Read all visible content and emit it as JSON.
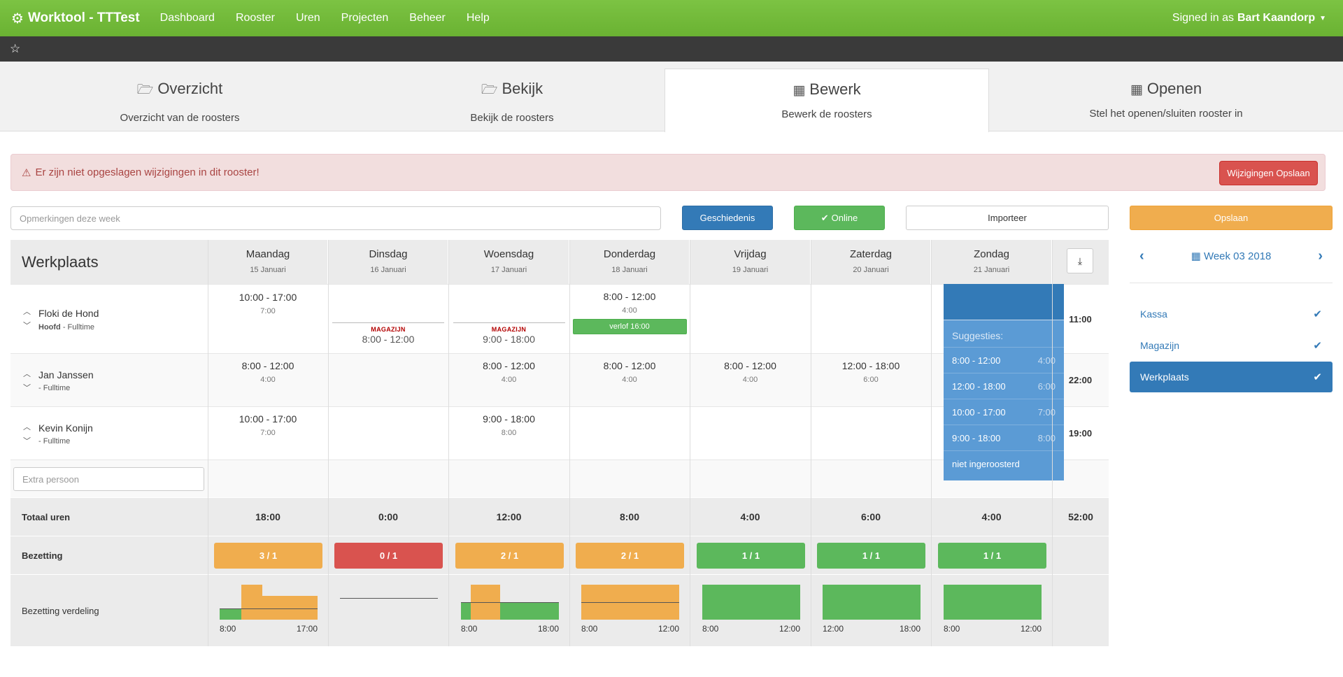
{
  "nav": {
    "brand": "Worktool - TTTest",
    "links": [
      "Dashboard",
      "Rooster",
      "Uren",
      "Projecten",
      "Beheer",
      "Help"
    ],
    "signed_prefix": "Signed in as",
    "user": "Bart Kaandorp"
  },
  "tabs": [
    {
      "title": "Overzicht",
      "sub": "Overzicht van de roosters",
      "icon": "folder-open-icon"
    },
    {
      "title": "Bekijk",
      "sub": "Bekijk de roosters",
      "icon": "folder-open-icon"
    },
    {
      "title": "Bewerk",
      "sub": "Bewerk de roosters",
      "icon": "calendar-icon"
    },
    {
      "title": "Openen",
      "sub": "Stel het openen/sluiten rooster in",
      "icon": "calendar-icon"
    }
  ],
  "alert": {
    "text": "Er zijn niet opgeslagen wijzigingen in dit rooster!",
    "button": "Wijzigingen Opslaan"
  },
  "controls": {
    "remarks_placeholder": "Opmerkingen deze week",
    "history": "Geschiedenis",
    "online": "Online",
    "import": "Importeer",
    "save": "Opslaan"
  },
  "schedule": {
    "location": "Werkplaats",
    "days": [
      {
        "name": "Maandag",
        "date": "15 Januari"
      },
      {
        "name": "Dinsdag",
        "date": "16 Januari"
      },
      {
        "name": "Woensdag",
        "date": "17 Januari"
      },
      {
        "name": "Donderdag",
        "date": "18 Januari"
      },
      {
        "name": "Vrijdag",
        "date": "19 Januari"
      },
      {
        "name": "Zaterdag",
        "date": "20 Januari"
      },
      {
        "name": "Zondag",
        "date": "21 Januari"
      }
    ],
    "people": [
      {
        "name": "Floki de Hond",
        "role": "Hoofd",
        "contract": "Fulltime",
        "total": "11:00",
        "mon": {
          "time": "10:00 - 17:00",
          "dur": "7:00"
        },
        "tue": {
          "tag": "MAGAZIJN",
          "time": "8:00 - 12:00"
        },
        "wed": {
          "tag": "MAGAZIJN",
          "time": "9:00 - 18:00"
        },
        "thu": {
          "time": "8:00 - 12:00",
          "dur": "4:00",
          "verlof": "verlof 16:00"
        }
      },
      {
        "name": "Jan Janssen",
        "contract": "Fulltime",
        "total": "22:00",
        "mon": {
          "time": "8:00 - 12:00",
          "dur": "4:00"
        },
        "wed": {
          "time": "8:00 - 12:00",
          "dur": "4:00"
        },
        "thu": {
          "time": "8:00 - 12:00",
          "dur": "4:00"
        },
        "fri": {
          "time": "8:00 - 12:00",
          "dur": "4:00"
        },
        "sat": {
          "time": "12:00 - 18:00",
          "dur": "6:00"
        }
      },
      {
        "name": "Kevin Konijn",
        "contract": "Fulltime",
        "total": "19:00",
        "mon": {
          "time": "10:00 - 17:00",
          "dur": "7:00"
        },
        "wed": {
          "time": "9:00 - 18:00",
          "dur": "8:00"
        }
      }
    ],
    "suggestions": {
      "title": "Suggesties:",
      "items": [
        {
          "time": "8:00 - 12:00",
          "dur": "4:00"
        },
        {
          "time": "12:00 - 18:00",
          "dur": "6:00"
        },
        {
          "time": "10:00 - 17:00",
          "dur": "7:00"
        },
        {
          "time": "9:00 - 18:00",
          "dur": "8:00"
        }
      ],
      "none": "niet ingeroosterd"
    },
    "extra_placeholder": "Extra persoon",
    "totals_label": "Totaal uren",
    "totals": [
      "18:00",
      "0:00",
      "12:00",
      "8:00",
      "4:00",
      "6:00",
      "4:00",
      "52:00"
    ],
    "occupancy_label": "Bezetting",
    "occupancy": [
      {
        "value": "3 / 1",
        "status": "orange"
      },
      {
        "value": "0 / 1",
        "status": "red"
      },
      {
        "value": "2 / 1",
        "status": "orange"
      },
      {
        "value": "2 / 1",
        "status": "orange"
      },
      {
        "value": "1 / 1",
        "status": "green"
      },
      {
        "value": "1 / 1",
        "status": "green"
      },
      {
        "value": "1 / 1",
        "status": "green"
      }
    ],
    "distribution_label": "Bezetting verdeling",
    "distribution_axes": [
      [
        "8:00",
        "17:00"
      ],
      [
        "",
        ""
      ],
      [
        "8:00",
        "18:00"
      ],
      [
        "8:00",
        "12:00"
      ],
      [
        "8:00",
        "12:00"
      ],
      [
        "12:00",
        "18:00"
      ],
      [
        "8:00",
        "12:00"
      ]
    ]
  },
  "sidebar": {
    "week": "Week 03 2018",
    "locations": [
      {
        "name": "Kassa",
        "active": false
      },
      {
        "name": "Magazijn",
        "active": false
      },
      {
        "name": "Werkplaats",
        "active": true
      }
    ]
  },
  "colors": {
    "green": "#5cb85c",
    "orange": "#f0ad4e",
    "red": "#d9534f",
    "blue": "#337ab7"
  }
}
